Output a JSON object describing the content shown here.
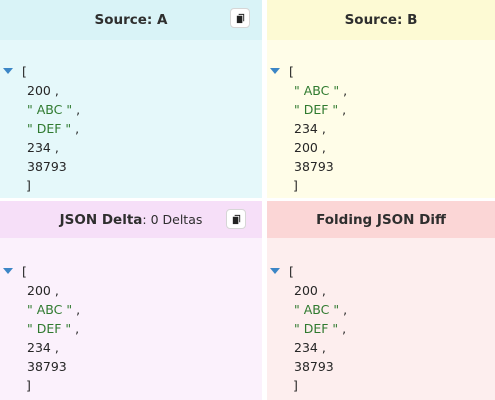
{
  "panels": {
    "a": {
      "title": "Source: A",
      "lines": {
        "open": "[",
        "v1": "200",
        "v2": "\" ABC \"",
        "v3": "\" DEF \"",
        "v4": "234",
        "v5": "38793",
        "close": "]"
      }
    },
    "b": {
      "title": "Source: B",
      "lines": {
        "open": "[",
        "v1": "\" ABC \"",
        "v2": "\" DEF \"",
        "v3": "234",
        "v4": "200",
        "v5": "38793",
        "close": "]"
      }
    },
    "c": {
      "title": "JSON Delta",
      "subtitle": " : 0 Deltas",
      "lines": {
        "open": "[",
        "v1": "200",
        "v2": "\" ABC \"",
        "v3": "\" DEF \"",
        "v4": "234",
        "v5": "38793",
        "close": "]"
      }
    },
    "d": {
      "title": "Folding JSON Diff",
      "lines": {
        "open": "[",
        "v1": "200",
        "v2": "\" ABC \"",
        "v3": "\" DEF \"",
        "v4": "234",
        "v5": "38793",
        "close": "]"
      }
    }
  },
  "punct": {
    "comma": " ,"
  },
  "icons": {
    "copy": "copy-icon",
    "toggle": "caret-down-icon"
  },
  "colors": {
    "string": "#2f7a2f",
    "arrow": "#3c86c6"
  }
}
